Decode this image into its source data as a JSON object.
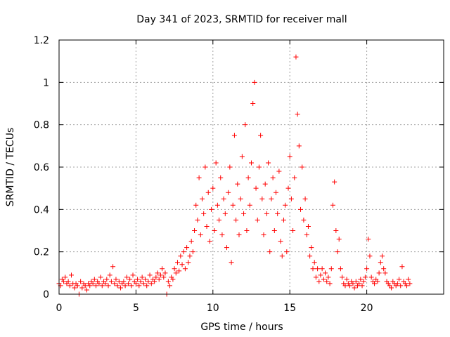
{
  "chart_data": {
    "type": "scatter",
    "title": "Day 341 of 2023, SRMTID for receiver mall",
    "xlabel": "GPS time / hours",
    "ylabel": "SRMTID / TECUs",
    "xlim": [
      0,
      25
    ],
    "ylim": [
      0,
      1.2
    ],
    "xticks": [
      0,
      5,
      10,
      15,
      20
    ],
    "xtick_labels": [
      "0",
      "5",
      "10",
      "15",
      "20"
    ],
    "yticks": [
      0,
      0.2,
      0.4,
      0.6,
      0.8,
      1.0,
      1.2
    ],
    "ytick_labels": [
      "0",
      "0.2",
      "0.4",
      "0.6",
      "0.8",
      "1",
      "1.2"
    ],
    "grid": true,
    "marker": "+",
    "color": "#ff0000",
    "series": [
      {
        "name": "SRMTID",
        "points": [
          [
            0.0,
            0.05
          ],
          [
            0.1,
            0.04
          ],
          [
            0.2,
            0.07
          ],
          [
            0.3,
            0.06
          ],
          [
            0.4,
            0.08
          ],
          [
            0.5,
            0.05
          ],
          [
            0.6,
            0.06
          ],
          [
            0.7,
            0.04
          ],
          [
            0.8,
            0.09
          ],
          [
            0.9,
            0.05
          ],
          [
            1.0,
            0.03
          ],
          [
            1.1,
            0.05
          ],
          [
            1.2,
            0.04
          ],
          [
            1.3,
            0.0
          ],
          [
            1.4,
            0.06
          ],
          [
            1.5,
            0.03
          ],
          [
            1.6,
            0.05
          ],
          [
            1.7,
            0.04
          ],
          [
            1.8,
            0.02
          ],
          [
            1.9,
            0.05
          ],
          [
            2.0,
            0.04
          ],
          [
            2.1,
            0.06
          ],
          [
            2.2,
            0.05
          ],
          [
            2.3,
            0.07
          ],
          [
            2.4,
            0.04
          ],
          [
            2.5,
            0.06
          ],
          [
            2.6,
            0.05
          ],
          [
            2.7,
            0.08
          ],
          [
            2.8,
            0.04
          ],
          [
            2.9,
            0.06
          ],
          [
            3.0,
            0.05
          ],
          [
            3.1,
            0.07
          ],
          [
            3.2,
            0.04
          ],
          [
            3.3,
            0.09
          ],
          [
            3.4,
            0.06
          ],
          [
            3.5,
            0.13
          ],
          [
            3.6,
            0.05
          ],
          [
            3.7,
            0.07
          ],
          [
            3.8,
            0.04
          ],
          [
            3.9,
            0.06
          ],
          [
            4.0,
            0.03
          ],
          [
            4.1,
            0.05
          ],
          [
            4.2,
            0.06
          ],
          [
            4.3,
            0.04
          ],
          [
            4.4,
            0.08
          ],
          [
            4.5,
            0.05
          ],
          [
            4.6,
            0.07
          ],
          [
            4.7,
            0.04
          ],
          [
            4.8,
            0.09
          ],
          [
            4.9,
            0.06
          ],
          [
            5.0,
            0.05
          ],
          [
            5.1,
            0.07
          ],
          [
            5.2,
            0.04
          ],
          [
            5.3,
            0.06
          ],
          [
            5.4,
            0.08
          ],
          [
            5.5,
            0.05
          ],
          [
            5.6,
            0.07
          ],
          [
            5.7,
            0.04
          ],
          [
            5.8,
            0.06
          ],
          [
            5.9,
            0.09
          ],
          [
            6.0,
            0.05
          ],
          [
            6.1,
            0.07
          ],
          [
            6.2,
            0.06
          ],
          [
            6.3,
            0.08
          ],
          [
            6.4,
            0.1
          ],
          [
            6.5,
            0.07
          ],
          [
            6.6,
            0.09
          ],
          [
            6.7,
            0.12
          ],
          [
            6.8,
            0.08
          ],
          [
            6.9,
            0.1
          ],
          [
            7.0,
            0.0
          ],
          [
            7.1,
            0.06
          ],
          [
            7.2,
            0.04
          ],
          [
            7.3,
            0.08
          ],
          [
            7.4,
            0.07
          ],
          [
            7.5,
            0.12
          ],
          [
            7.6,
            0.1
          ],
          [
            7.7,
            0.15
          ],
          [
            7.8,
            0.11
          ],
          [
            7.9,
            0.18
          ],
          [
            8.0,
            0.14
          ],
          [
            8.1,
            0.2
          ],
          [
            8.2,
            0.12
          ],
          [
            8.3,
            0.22
          ],
          [
            8.4,
            0.15
          ],
          [
            8.5,
            0.18
          ],
          [
            8.6,
            0.25
          ],
          [
            8.7,
            0.2
          ],
          [
            8.8,
            0.3
          ],
          [
            8.9,
            0.42
          ],
          [
            9.0,
            0.35
          ],
          [
            9.1,
            0.55
          ],
          [
            9.2,
            0.28
          ],
          [
            9.3,
            0.45
          ],
          [
            9.4,
            0.38
          ],
          [
            9.5,
            0.6
          ],
          [
            9.6,
            0.32
          ],
          [
            9.7,
            0.48
          ],
          [
            9.8,
            0.25
          ],
          [
            9.9,
            0.4
          ],
          [
            10.0,
            0.5
          ],
          [
            10.1,
            0.3
          ],
          [
            10.2,
            0.62
          ],
          [
            10.3,
            0.42
          ],
          [
            10.4,
            0.35
          ],
          [
            10.5,
            0.55
          ],
          [
            10.6,
            0.28
          ],
          [
            10.7,
            0.45
          ],
          [
            10.8,
            0.38
          ],
          [
            10.9,
            0.22
          ],
          [
            11.0,
            0.48
          ],
          [
            11.1,
            0.6
          ],
          [
            11.2,
            0.15
          ],
          [
            11.3,
            0.42
          ],
          [
            11.4,
            0.75
          ],
          [
            11.5,
            0.35
          ],
          [
            11.6,
            0.52
          ],
          [
            11.7,
            0.28
          ],
          [
            11.8,
            0.45
          ],
          [
            11.9,
            0.65
          ],
          [
            12.0,
            0.38
          ],
          [
            12.1,
            0.8
          ],
          [
            12.2,
            0.3
          ],
          [
            12.3,
            0.55
          ],
          [
            12.4,
            0.42
          ],
          [
            12.5,
            0.62
          ],
          [
            12.6,
            0.9
          ],
          [
            12.7,
            1.0
          ],
          [
            12.8,
            0.5
          ],
          [
            12.9,
            0.35
          ],
          [
            13.0,
            0.6
          ],
          [
            13.1,
            0.75
          ],
          [
            13.2,
            0.45
          ],
          [
            13.3,
            0.28
          ],
          [
            13.4,
            0.52
          ],
          [
            13.5,
            0.38
          ],
          [
            13.6,
            0.62
          ],
          [
            13.7,
            0.2
          ],
          [
            13.8,
            0.45
          ],
          [
            13.9,
            0.55
          ],
          [
            14.0,
            0.3
          ],
          [
            14.1,
            0.48
          ],
          [
            14.2,
            0.38
          ],
          [
            14.3,
            0.58
          ],
          [
            14.4,
            0.25
          ],
          [
            14.5,
            0.18
          ],
          [
            14.6,
            0.35
          ],
          [
            14.7,
            0.42
          ],
          [
            14.8,
            0.2
          ],
          [
            14.9,
            0.5
          ],
          [
            15.0,
            0.65
          ],
          [
            15.1,
            0.45
          ],
          [
            15.2,
            0.3
          ],
          [
            15.3,
            0.55
          ],
          [
            15.4,
            1.12
          ],
          [
            15.5,
            0.85
          ],
          [
            15.6,
            0.7
          ],
          [
            15.7,
            0.4
          ],
          [
            15.8,
            0.6
          ],
          [
            15.9,
            0.35
          ],
          [
            16.0,
            0.45
          ],
          [
            16.1,
            0.28
          ],
          [
            16.2,
            0.32
          ],
          [
            16.3,
            0.18
          ],
          [
            16.4,
            0.22
          ],
          [
            16.5,
            0.12
          ],
          [
            16.6,
            0.15
          ],
          [
            16.7,
            0.08
          ],
          [
            16.8,
            0.12
          ],
          [
            16.9,
            0.06
          ],
          [
            17.0,
            0.09
          ],
          [
            17.1,
            0.12
          ],
          [
            17.2,
            0.07
          ],
          [
            17.3,
            0.1
          ],
          [
            17.4,
            0.06
          ],
          [
            17.5,
            0.08
          ],
          [
            17.6,
            0.05
          ],
          [
            17.7,
            0.12
          ],
          [
            17.8,
            0.42
          ],
          [
            17.9,
            0.53
          ],
          [
            18.0,
            0.3
          ],
          [
            18.1,
            0.2
          ],
          [
            18.2,
            0.26
          ],
          [
            18.3,
            0.12
          ],
          [
            18.4,
            0.08
          ],
          [
            18.5,
            0.05
          ],
          [
            18.6,
            0.04
          ],
          [
            18.7,
            0.07
          ],
          [
            18.8,
            0.05
          ],
          [
            18.9,
            0.04
          ],
          [
            19.0,
            0.06
          ],
          [
            19.1,
            0.05
          ],
          [
            19.2,
            0.03
          ],
          [
            19.3,
            0.06
          ],
          [
            19.4,
            0.04
          ],
          [
            19.5,
            0.05
          ],
          [
            19.6,
            0.07
          ],
          [
            19.7,
            0.04
          ],
          [
            19.8,
            0.06
          ],
          [
            19.9,
            0.08
          ],
          [
            20.0,
            0.12
          ],
          [
            20.1,
            0.26
          ],
          [
            20.2,
            0.18
          ],
          [
            20.3,
            0.08
          ],
          [
            20.4,
            0.06
          ],
          [
            20.5,
            0.05
          ],
          [
            20.6,
            0.07
          ],
          [
            20.7,
            0.06
          ],
          [
            20.8,
            0.1
          ],
          [
            20.9,
            0.15
          ],
          [
            21.0,
            0.18
          ],
          [
            21.1,
            0.12
          ],
          [
            21.2,
            0.1
          ],
          [
            21.3,
            0.06
          ],
          [
            21.4,
            0.05
          ],
          [
            21.5,
            0.04
          ],
          [
            21.6,
            0.03
          ],
          [
            21.7,
            0.06
          ],
          [
            21.8,
            0.05
          ],
          [
            21.9,
            0.04
          ],
          [
            22.0,
            0.05
          ],
          [
            22.1,
            0.07
          ],
          [
            22.2,
            0.04
          ],
          [
            22.3,
            0.13
          ],
          [
            22.4,
            0.06
          ],
          [
            22.5,
            0.05
          ],
          [
            22.6,
            0.04
          ],
          [
            22.7,
            0.07
          ],
          [
            22.8,
            0.05
          ]
        ]
      }
    ]
  }
}
